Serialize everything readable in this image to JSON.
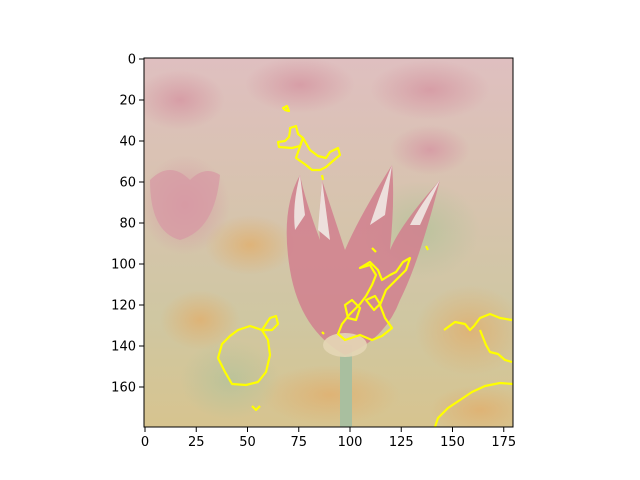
{
  "x_axis": {
    "range": [
      0,
      180
    ],
    "ticks": [
      {
        "value": 0,
        "label": "0"
      },
      {
        "value": 25,
        "label": "25"
      },
      {
        "value": 50,
        "label": "50"
      },
      {
        "value": 75,
        "label": "75"
      },
      {
        "value": 100,
        "label": "100"
      },
      {
        "value": 125,
        "label": "125"
      },
      {
        "value": 150,
        "label": "150"
      },
      {
        "value": 175,
        "label": "175"
      }
    ]
  },
  "y_axis": {
    "range": [
      180,
      0
    ],
    "ticks": [
      {
        "value": 0,
        "label": "0"
      },
      {
        "value": 20,
        "label": "20"
      },
      {
        "value": 40,
        "label": "40"
      },
      {
        "value": 60,
        "label": "60"
      },
      {
        "value": 80,
        "label": "80"
      },
      {
        "value": 100,
        "label": "100"
      },
      {
        "value": 120,
        "label": "120"
      },
      {
        "value": 140,
        "label": "140"
      },
      {
        "value": 160,
        "label": "160"
      }
    ]
  },
  "image": {
    "subject": "tulip-photo-faded",
    "contour_color": "#ffff00"
  },
  "colors": {
    "bg_top": "#dcbcbc",
    "bg_mid": "#d7c9a9",
    "bg_bottom": "#d9c493",
    "petal": "#d17f8e",
    "petal_white": "#efe9e4",
    "stem": "#a7bea0"
  }
}
